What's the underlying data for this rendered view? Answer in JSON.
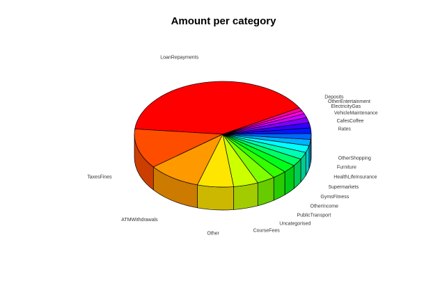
{
  "chart_data": {
    "type": "pie",
    "style": "3d",
    "title": "Amount per category",
    "slices": [
      {
        "label": "LoanRepayments",
        "value": 40.0,
        "color": "#FF0000"
      },
      {
        "label": "TaxesFines",
        "value": 12.2,
        "color": "#FF4D00"
      },
      {
        "label": "ATMWithdrawals",
        "value": 9.7,
        "color": "#FF9900"
      },
      {
        "label": "Other",
        "value": 6.6,
        "color": "#FFE600"
      },
      {
        "label": "CourseFees",
        "value": 4.5,
        "color": "#CCFF00"
      },
      {
        "label": "Uncategorised",
        "value": 3.3,
        "color": "#80FF00"
      },
      {
        "label": "PublicTransport",
        "value": 2.6,
        "color": "#33FF00"
      },
      {
        "label": "OtherIncome",
        "value": 2.5,
        "color": "#00FF19"
      },
      {
        "label": "GymsFitness",
        "value": 2.3,
        "color": "#00FF66"
      },
      {
        "label": "Supermarkets",
        "value": 2.2,
        "color": "#00FFB3"
      },
      {
        "label": "HealthLifeInsurance",
        "value": 2.1,
        "color": "#00FFFF"
      },
      {
        "label": "Furniture",
        "value": 1.9,
        "color": "#00B3FF"
      },
      {
        "label": "OtherShopping",
        "value": 1.8,
        "color": "#0066FF"
      },
      {
        "label": "Rates",
        "value": 1.7,
        "color": "#0019FF"
      },
      {
        "label": "CafesCoffee",
        "value": 1.6,
        "color": "#3300FF"
      },
      {
        "label": "VehicleMaintenance",
        "value": 1.6,
        "color": "#8000FF"
      },
      {
        "label": "ElectricityGas",
        "value": 1.2,
        "color": "#CC00FF"
      },
      {
        "label": "OtherEntertainment",
        "value": 1.0,
        "color": "#FF00E6"
      },
      {
        "label": "Deposits",
        "value": 1.0,
        "color": "#FF0099"
      }
    ]
  }
}
